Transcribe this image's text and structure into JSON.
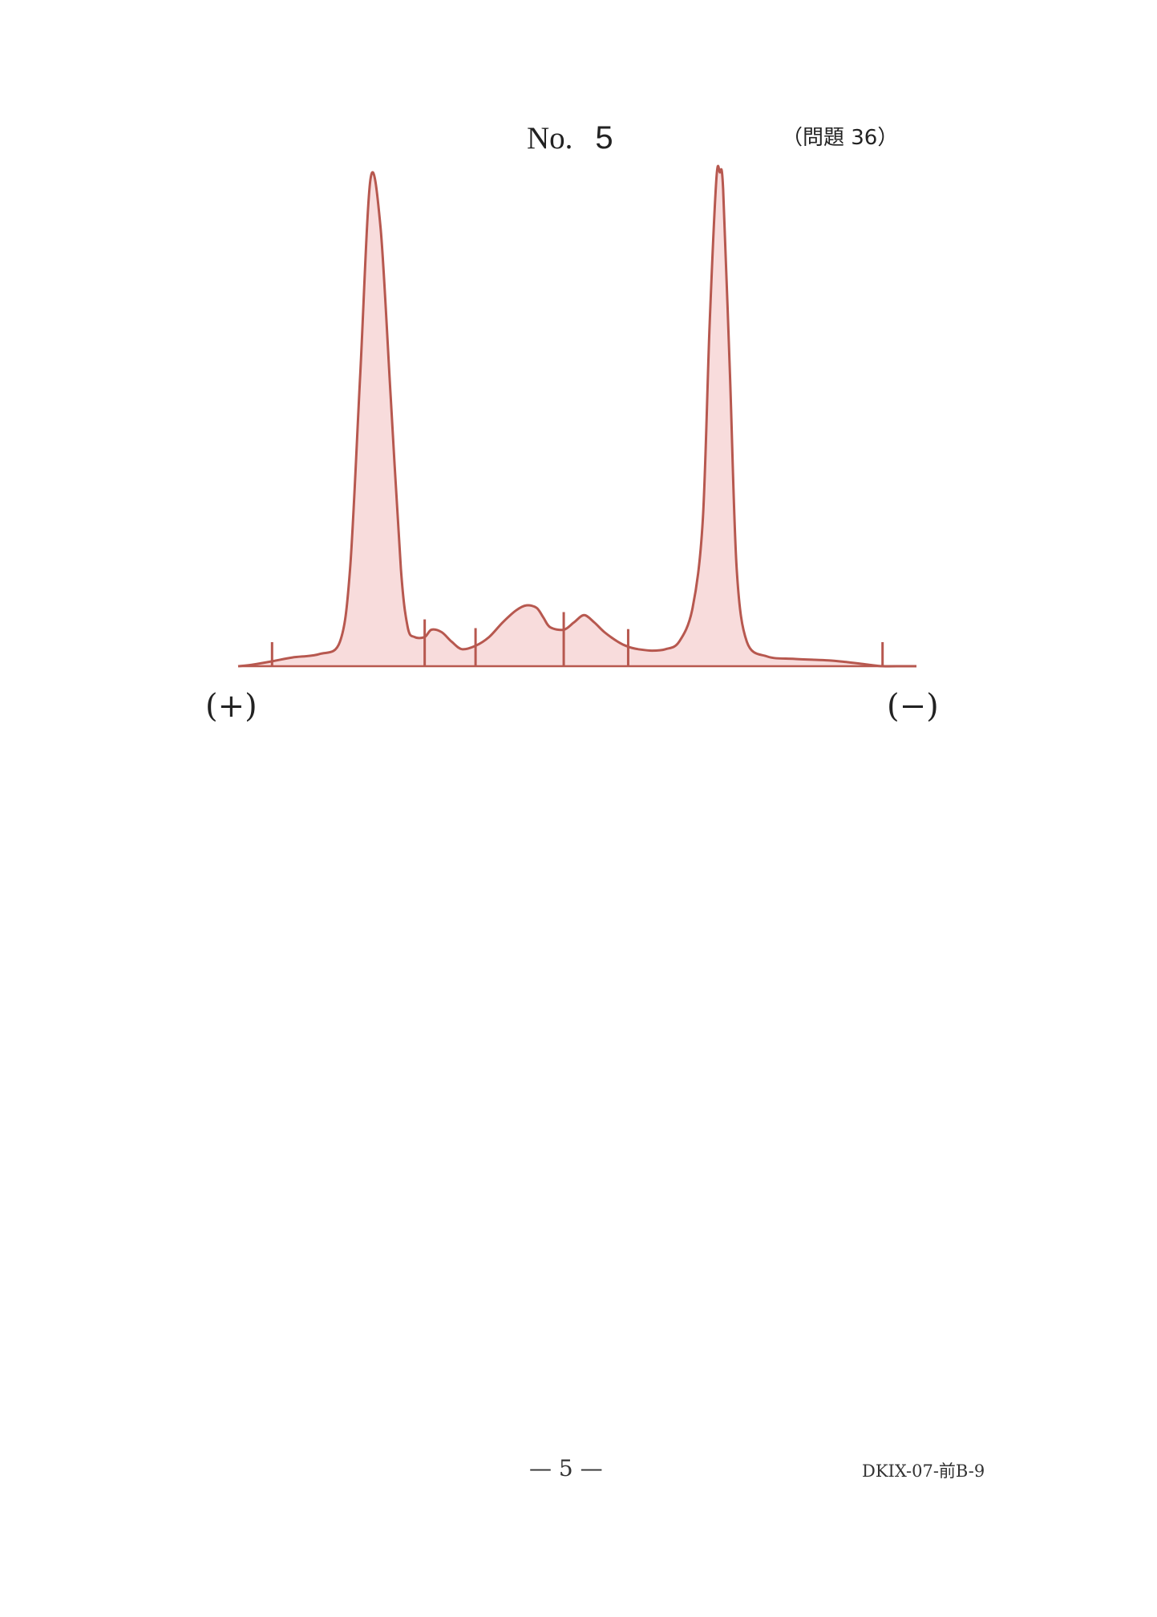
{
  "header": {
    "title_prefix": "No.",
    "title_number": "5",
    "question_ref": "（問題 36）"
  },
  "chart_data": {
    "type": "line",
    "title": "",
    "xlabel": "",
    "ylabel": "",
    "grid": false,
    "legend": "none",
    "anode_label": "(+)",
    "cathode_label": "(−)",
    "xlim": [
      0,
      100
    ],
    "ylim": [
      0,
      100
    ],
    "line_color": "#b7584f",
    "fill_color": "#f8dcdc",
    "fraction_boundaries": [
      5,
      27.5,
      35,
      48,
      57.5,
      95
    ],
    "x": [
      0,
      2,
      5,
      8,
      12,
      15,
      16.5,
      18,
      19.5,
      21,
      22.5,
      24,
      25,
      26,
      27.5,
      28.5,
      30,
      31.5,
      33,
      35,
      37,
      39,
      41,
      42.5,
      44,
      45,
      46,
      48,
      49.5,
      51,
      52.5,
      54,
      56,
      57.5,
      59,
      61,
      63,
      65,
      67,
      68.5,
      69.5,
      70.5,
      71,
      71.5,
      72.5,
      73.5,
      75,
      78,
      82,
      87,
      90,
      93,
      95,
      98,
      100
    ],
    "y": [
      0,
      0.3,
      1,
      1.8,
      2.5,
      5,
      20,
      60,
      100,
      90,
      55,
      20,
      8,
      6,
      6,
      7.5,
      7,
      5,
      3.5,
      4.2,
      6,
      9,
      11.5,
      12.5,
      12,
      10,
      8,
      7.5,
      9,
      10.5,
      9,
      7,
      5,
      4,
      3.5,
      3.2,
      3.5,
      5,
      12,
      30,
      70,
      100,
      101.5,
      98,
      60,
      20,
      5,
      2,
      1.5,
      1.2,
      0.8,
      0.3,
      0,
      0,
      0
    ]
  },
  "footer": {
    "page": "— 5 —",
    "code": "DKIX-07-前B-9"
  }
}
